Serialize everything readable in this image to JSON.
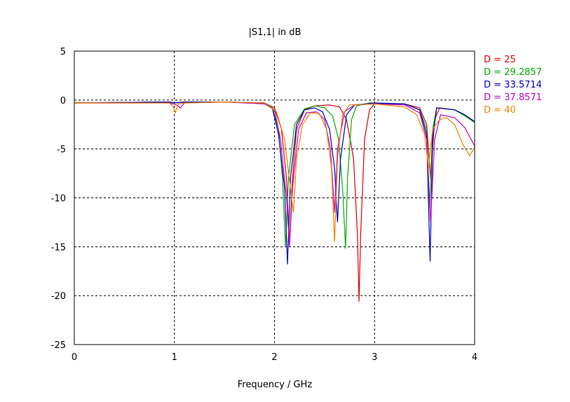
{
  "chart_data": {
    "type": "line",
    "title": "|S1,1| in dB",
    "xlabel": "Frequency / GHz",
    "ylabel": "",
    "xlim": [
      0,
      4
    ],
    "ylim": [
      -25,
      5
    ],
    "xticks": [
      "0",
      "1",
      "2",
      "3",
      "4"
    ],
    "yticks": [
      "5",
      "0",
      "-5",
      "-10",
      "-15",
      "-20",
      "-25"
    ],
    "grid": true,
    "legend_placement": "right",
    "series": [
      {
        "name": "D = 25",
        "color": "#e00000",
        "points": [
          [
            0,
            -0.3
          ],
          [
            0.95,
            -0.2
          ],
          [
            1.0,
            -0.3
          ],
          [
            1.1,
            -0.2
          ],
          [
            1.5,
            -0.2
          ],
          [
            1.9,
            -0.3
          ],
          [
            2.0,
            -0.8
          ],
          [
            2.07,
            -3
          ],
          [
            2.12,
            -8
          ],
          [
            2.15,
            -14.7
          ],
          [
            2.18,
            -8
          ],
          [
            2.22,
            -3
          ],
          [
            2.3,
            -1
          ],
          [
            2.4,
            -0.6
          ],
          [
            2.55,
            -0.5
          ],
          [
            2.65,
            -0.7
          ],
          [
            2.72,
            -2
          ],
          [
            2.79,
            -6
          ],
          [
            2.83,
            -14
          ],
          [
            2.845,
            -20.6
          ],
          [
            2.86,
            -14
          ],
          [
            2.9,
            -4
          ],
          [
            2.95,
            -1
          ],
          [
            3.0,
            -0.4
          ],
          [
            3.3,
            -0.4
          ],
          [
            3.45,
            -0.8
          ],
          [
            3.52,
            -2.5
          ],
          [
            3.56,
            -8
          ],
          [
            3.6,
            -2
          ],
          [
            3.65,
            -0.8
          ],
          [
            3.8,
            -1
          ],
          [
            3.9,
            -1.5
          ],
          [
            4.0,
            -2.2
          ]
        ]
      },
      {
        "name": "D = 29.2857",
        "color": "#00b000",
        "points": [
          [
            0,
            -0.3
          ],
          [
            0.95,
            -0.2
          ],
          [
            1.0,
            -0.3
          ],
          [
            1.1,
            -0.2
          ],
          [
            1.5,
            -0.2
          ],
          [
            1.9,
            -0.3
          ],
          [
            1.98,
            -0.8
          ],
          [
            2.04,
            -3
          ],
          [
            2.08,
            -8
          ],
          [
            2.11,
            -15
          ],
          [
            2.14,
            -8
          ],
          [
            2.2,
            -2.5
          ],
          [
            2.3,
            -0.9
          ],
          [
            2.4,
            -0.6
          ],
          [
            2.5,
            -0.8
          ],
          [
            2.58,
            -1.6
          ],
          [
            2.64,
            -4
          ],
          [
            2.68,
            -9
          ],
          [
            2.71,
            -15.2
          ],
          [
            2.73,
            -8
          ],
          [
            2.77,
            -2
          ],
          [
            2.82,
            -0.6
          ],
          [
            2.95,
            -0.3
          ],
          [
            3.3,
            -0.4
          ],
          [
            3.45,
            -1
          ],
          [
            3.52,
            -3
          ],
          [
            3.55,
            -11
          ],
          [
            3.58,
            -3
          ],
          [
            3.62,
            -0.8
          ],
          [
            3.8,
            -1
          ],
          [
            3.9,
            -1.6
          ],
          [
            4.0,
            -2.3
          ]
        ]
      },
      {
        "name": "D = 33.5714",
        "color": "#0000c0",
        "points": [
          [
            0,
            -0.3
          ],
          [
            0.95,
            -0.2
          ],
          [
            1.0,
            -0.3
          ],
          [
            1.1,
            -0.2
          ],
          [
            1.5,
            -0.2
          ],
          [
            1.9,
            -0.3
          ],
          [
            1.98,
            -0.9
          ],
          [
            2.04,
            -3.5
          ],
          [
            2.1,
            -9
          ],
          [
            2.13,
            -16.8
          ],
          [
            2.16,
            -8
          ],
          [
            2.22,
            -2.5
          ],
          [
            2.3,
            -1
          ],
          [
            2.4,
            -0.8
          ],
          [
            2.48,
            -1.2
          ],
          [
            2.55,
            -3
          ],
          [
            2.6,
            -7
          ],
          [
            2.63,
            -12.5
          ],
          [
            2.66,
            -6
          ],
          [
            2.72,
            -1.5
          ],
          [
            2.8,
            -0.5
          ],
          [
            3.0,
            -0.3
          ],
          [
            3.3,
            -0.4
          ],
          [
            3.45,
            -1
          ],
          [
            3.52,
            -3.5
          ],
          [
            3.555,
            -16.5
          ],
          [
            3.58,
            -4
          ],
          [
            3.62,
            -0.8
          ],
          [
            3.8,
            -1
          ],
          [
            3.9,
            -1.5
          ],
          [
            4.0,
            -2.2
          ]
        ]
      },
      {
        "name": "D = 37.8571",
        "color": "#c000c0",
        "points": [
          [
            0,
            -0.3
          ],
          [
            0.95,
            -0.3
          ],
          [
            1.02,
            -0.5
          ],
          [
            1.06,
            -0.8
          ],
          [
            1.1,
            -0.3
          ],
          [
            1.5,
            -0.2
          ],
          [
            1.9,
            -0.4
          ],
          [
            2.0,
            -1
          ],
          [
            2.06,
            -4
          ],
          [
            2.12,
            -10
          ],
          [
            2.15,
            -15
          ],
          [
            2.18,
            -9
          ],
          [
            2.24,
            -3
          ],
          [
            2.32,
            -1.3
          ],
          [
            2.42,
            -1.2
          ],
          [
            2.5,
            -2
          ],
          [
            2.56,
            -5
          ],
          [
            2.6,
            -11.5
          ],
          [
            2.63,
            -5
          ],
          [
            2.7,
            -1.2
          ],
          [
            2.8,
            -0.5
          ],
          [
            3.0,
            -0.4
          ],
          [
            3.3,
            -0.5
          ],
          [
            3.45,
            -1.3
          ],
          [
            3.52,
            -4
          ],
          [
            3.56,
            -12.5
          ],
          [
            3.6,
            -4
          ],
          [
            3.66,
            -1.5
          ],
          [
            3.8,
            -1.8
          ],
          [
            3.9,
            -2.8
          ],
          [
            4.0,
            -4.7
          ]
        ]
      },
      {
        "name": "D = 40",
        "color": "#f08000",
        "points": [
          [
            0,
            -0.3
          ],
          [
            0.95,
            -0.3
          ],
          [
            0.99,
            -0.7
          ],
          [
            1.01,
            -1.3
          ],
          [
            1.04,
            -0.4
          ],
          [
            1.1,
            -0.3
          ],
          [
            1.5,
            -0.2
          ],
          [
            1.9,
            -0.3
          ],
          [
            2.02,
            -1.2
          ],
          [
            2.1,
            -4
          ],
          [
            2.16,
            -9
          ],
          [
            2.19,
            -11.5
          ],
          [
            2.22,
            -6
          ],
          [
            2.28,
            -2.5
          ],
          [
            2.36,
            -1.3
          ],
          [
            2.45,
            -1.4
          ],
          [
            2.52,
            -3
          ],
          [
            2.57,
            -7
          ],
          [
            2.6,
            -14.5
          ],
          [
            2.63,
            -6
          ],
          [
            2.68,
            -1.5
          ],
          [
            2.75,
            -0.5
          ],
          [
            3.0,
            -0.4
          ],
          [
            3.3,
            -0.7
          ],
          [
            3.42,
            -1.5
          ],
          [
            3.5,
            -3.5
          ],
          [
            3.54,
            -7
          ],
          [
            3.58,
            -3
          ],
          [
            3.65,
            -2
          ],
          [
            3.72,
            -1.8
          ],
          [
            3.8,
            -2.5
          ],
          [
            3.88,
            -4.5
          ],
          [
            3.95,
            -5.7
          ],
          [
            4.0,
            -4.8
          ]
        ]
      }
    ]
  }
}
